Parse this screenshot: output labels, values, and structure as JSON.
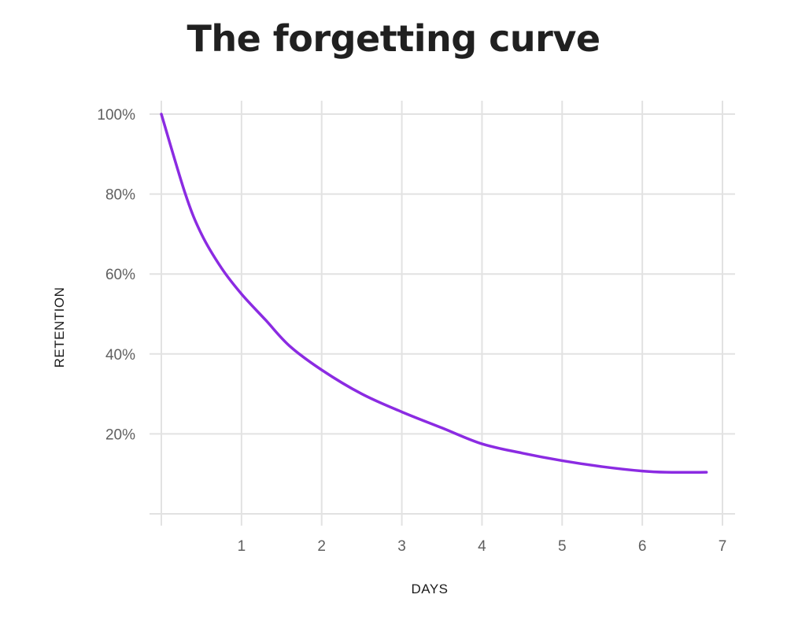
{
  "chart_data": {
    "type": "line",
    "title": "The forgetting curve",
    "xlabel": "DAYS",
    "ylabel": "RETENTION",
    "xlim": [
      0,
      7
    ],
    "ylim": [
      0,
      100
    ],
    "x_ticks": [
      1,
      2,
      3,
      4,
      5,
      6,
      7
    ],
    "y_ticks": [
      20,
      40,
      60,
      80,
      100
    ],
    "x_tick_labels": [
      "1",
      "2",
      "3",
      "4",
      "5",
      "6",
      "7"
    ],
    "y_tick_labels": [
      "20%",
      "40%",
      "60%",
      "80%",
      "100%"
    ],
    "grid": true,
    "color": "#8b2be2",
    "series": [
      {
        "x": [
          0,
          0.3,
          0.5,
          0.75,
          1,
          1.3,
          1.6,
          2,
          2.5,
          3,
          3.5,
          4,
          4.5,
          5,
          5.5,
          6,
          6.3,
          6.8
        ],
        "y": [
          100,
          80,
          70,
          61.5,
          55,
          48.5,
          42,
          36,
          30,
          25.5,
          21.5,
          17.5,
          15.2,
          13.3,
          11.8,
          10.7,
          10.4,
          10.4
        ]
      }
    ]
  }
}
